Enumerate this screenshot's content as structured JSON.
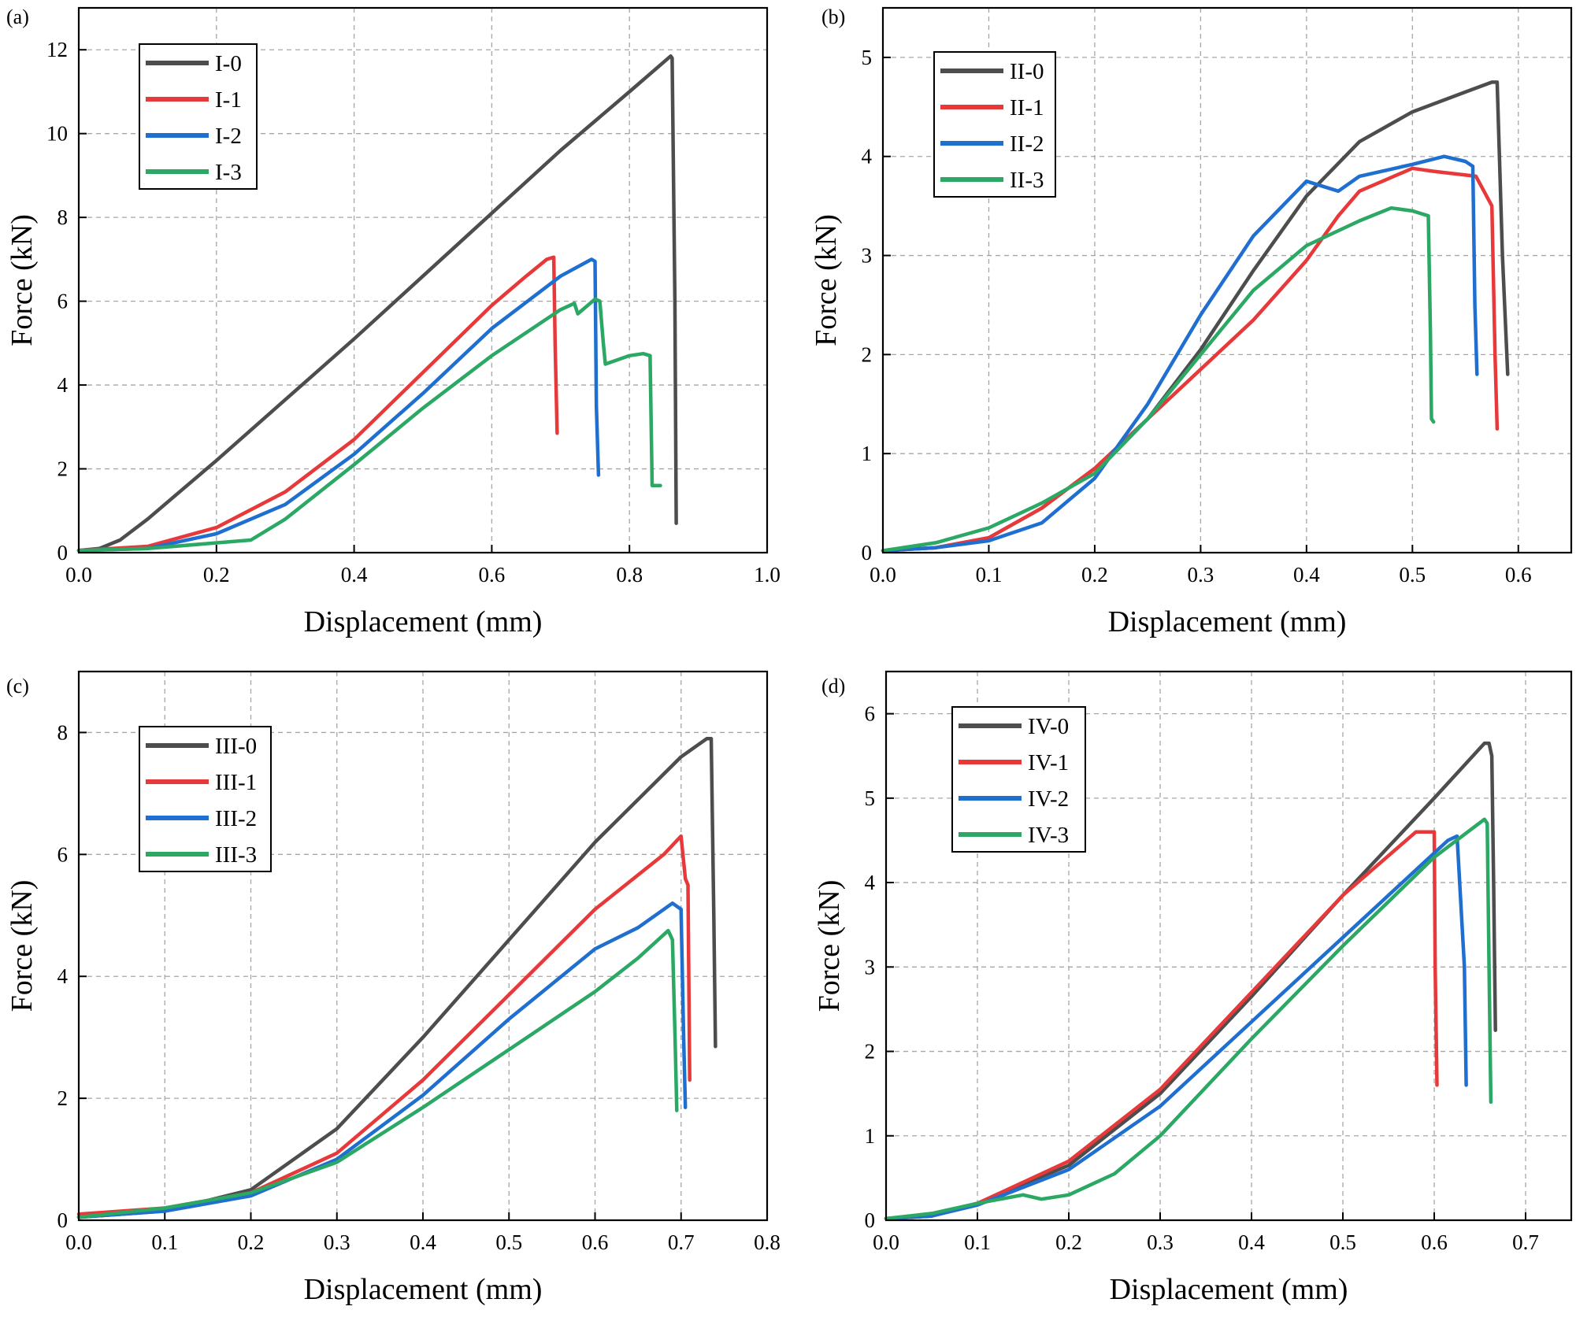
{
  "figure": {
    "colors": {
      "series_0": "#4d4d4d",
      "series_1": "#e8393a",
      "series_2": "#1f6fd1",
      "series_3": "#2aa864",
      "grid": "#a6a6a6",
      "axis": "#000000"
    }
  },
  "chart_data": [
    {
      "panel": "(a)",
      "type": "line",
      "xlabel": "Displacement (mm)",
      "ylabel": "Force (kN)",
      "xlim": [
        0,
        1.0
      ],
      "ylim": [
        0,
        13
      ],
      "xticks": [
        "0.0",
        "0.2",
        "0.4",
        "0.6",
        "0.8",
        "1.0"
      ],
      "yticks": [
        "0",
        "2",
        "4",
        "6",
        "8",
        "10",
        "12"
      ],
      "grid": true,
      "legend_position": "top-left",
      "series": [
        {
          "name": "I-0",
          "x": [
            0.0,
            0.03,
            0.06,
            0.1,
            0.2,
            0.3,
            0.4,
            0.5,
            0.6,
            0.7,
            0.8,
            0.86,
            0.862,
            0.866,
            0.868
          ],
          "y": [
            0.05,
            0.1,
            0.3,
            0.8,
            2.2,
            3.65,
            5.1,
            6.6,
            8.1,
            9.6,
            11.0,
            11.85,
            11.8,
            6.0,
            0.7
          ]
        },
        {
          "name": "I-1",
          "x": [
            0.0,
            0.1,
            0.2,
            0.3,
            0.4,
            0.5,
            0.6,
            0.65,
            0.68,
            0.69,
            0.692,
            0.695
          ],
          "y": [
            0.05,
            0.15,
            0.6,
            1.45,
            2.7,
            4.3,
            5.9,
            6.6,
            7.0,
            7.05,
            5.0,
            2.85
          ]
        },
        {
          "name": "I-2",
          "x": [
            0.0,
            0.1,
            0.2,
            0.3,
            0.4,
            0.5,
            0.6,
            0.7,
            0.745,
            0.75,
            0.752,
            0.755
          ],
          "y": [
            0.05,
            0.1,
            0.45,
            1.15,
            2.35,
            3.8,
            5.35,
            6.6,
            7.0,
            6.95,
            3.5,
            1.85
          ]
        },
        {
          "name": "I-3",
          "x": [
            0.0,
            0.1,
            0.25,
            0.3,
            0.4,
            0.5,
            0.6,
            0.7,
            0.72,
            0.725,
            0.75,
            0.757,
            0.762,
            0.765,
            0.8,
            0.82,
            0.83,
            0.833,
            0.837,
            0.845
          ],
          "y": [
            0.05,
            0.1,
            0.3,
            0.8,
            2.1,
            3.45,
            4.7,
            5.8,
            5.95,
            5.7,
            6.05,
            6.0,
            5.0,
            4.5,
            4.7,
            4.75,
            4.7,
            1.6,
            1.6,
            1.6
          ]
        }
      ]
    },
    {
      "panel": "(b)",
      "type": "line",
      "xlabel": "Displacement (mm)",
      "ylabel": "Force (kN)",
      "xlim": [
        0,
        0.65
      ],
      "ylim": [
        0,
        5.5
      ],
      "xticks": [
        "0.0",
        "0.1",
        "0.2",
        "0.3",
        "0.4",
        "0.5",
        "0.6"
      ],
      "yticks": [
        "0",
        "1",
        "2",
        "3",
        "4",
        "5"
      ],
      "grid": true,
      "legend_position": "top-left",
      "series": [
        {
          "name": "II-0",
          "x": [
            0.0,
            0.05,
            0.1,
            0.15,
            0.2,
            0.25,
            0.3,
            0.35,
            0.4,
            0.45,
            0.5,
            0.55,
            0.575,
            0.58,
            0.585,
            0.59
          ],
          "y": [
            0.02,
            0.05,
            0.15,
            0.45,
            0.85,
            1.35,
            2.05,
            2.85,
            3.6,
            4.15,
            4.45,
            4.65,
            4.75,
            4.75,
            3.0,
            1.8
          ]
        },
        {
          "name": "II-1",
          "x": [
            0.0,
            0.05,
            0.1,
            0.15,
            0.2,
            0.25,
            0.3,
            0.35,
            0.4,
            0.43,
            0.45,
            0.5,
            0.52,
            0.56,
            0.575,
            0.578,
            0.58
          ],
          "y": [
            0.02,
            0.05,
            0.15,
            0.45,
            0.85,
            1.35,
            1.85,
            2.35,
            2.95,
            3.4,
            3.65,
            3.88,
            3.85,
            3.8,
            3.5,
            2.0,
            1.25
          ]
        },
        {
          "name": "II-2",
          "x": [
            0.0,
            0.05,
            0.1,
            0.15,
            0.2,
            0.25,
            0.3,
            0.35,
            0.4,
            0.43,
            0.45,
            0.5,
            0.53,
            0.55,
            0.557,
            0.559,
            0.561
          ],
          "y": [
            0.02,
            0.05,
            0.12,
            0.3,
            0.75,
            1.5,
            2.4,
            3.2,
            3.75,
            3.65,
            3.8,
            3.92,
            4.0,
            3.95,
            3.9,
            2.5,
            1.8
          ]
        },
        {
          "name": "II-3",
          "x": [
            0.0,
            0.05,
            0.1,
            0.15,
            0.2,
            0.25,
            0.3,
            0.35,
            0.4,
            0.45,
            0.48,
            0.5,
            0.515,
            0.517,
            0.518,
            0.52
          ],
          "y": [
            0.02,
            0.1,
            0.25,
            0.5,
            0.8,
            1.35,
            2.0,
            2.65,
            3.1,
            3.35,
            3.48,
            3.45,
            3.4,
            2.2,
            1.35,
            1.32
          ]
        }
      ]
    },
    {
      "panel": "(c)",
      "type": "line",
      "xlabel": "Displacement (mm)",
      "ylabel": "Force (kN)",
      "xlim": [
        0,
        0.8
      ],
      "ylim": [
        0,
        9
      ],
      "xticks": [
        "0.0",
        "0.1",
        "0.2",
        "0.3",
        "0.4",
        "0.5",
        "0.6",
        "0.7",
        "0.8"
      ],
      "yticks": [
        "0",
        "2",
        "4",
        "6",
        "8"
      ],
      "grid": true,
      "legend_position": "top-left",
      "series": [
        {
          "name": "III-0",
          "x": [
            0.0,
            0.1,
            0.2,
            0.3,
            0.4,
            0.5,
            0.6,
            0.7,
            0.73,
            0.735,
            0.738,
            0.74
          ],
          "y": [
            0.05,
            0.15,
            0.5,
            1.5,
            3.0,
            4.6,
            6.2,
            7.6,
            7.9,
            7.9,
            5.0,
            2.85
          ]
        },
        {
          "name": "III-1",
          "x": [
            0.0,
            0.1,
            0.2,
            0.3,
            0.4,
            0.5,
            0.6,
            0.68,
            0.7,
            0.705,
            0.708,
            0.71
          ],
          "y": [
            0.1,
            0.2,
            0.45,
            1.1,
            2.3,
            3.7,
            5.1,
            6.0,
            6.3,
            5.6,
            5.5,
            2.3
          ]
        },
        {
          "name": "III-2",
          "x": [
            0.0,
            0.1,
            0.2,
            0.3,
            0.4,
            0.5,
            0.6,
            0.65,
            0.69,
            0.7,
            0.703,
            0.705
          ],
          "y": [
            0.05,
            0.15,
            0.4,
            1.0,
            2.05,
            3.3,
            4.45,
            4.8,
            5.2,
            5.1,
            3.0,
            1.85
          ]
        },
        {
          "name": "III-3",
          "x": [
            0.0,
            0.1,
            0.2,
            0.3,
            0.4,
            0.5,
            0.6,
            0.65,
            0.685,
            0.69,
            0.693,
            0.695
          ],
          "y": [
            0.05,
            0.2,
            0.45,
            0.95,
            1.85,
            2.8,
            3.75,
            4.3,
            4.75,
            4.6,
            3.0,
            1.8
          ]
        }
      ]
    },
    {
      "panel": "(d)",
      "type": "line",
      "xlabel": "Displacement (mm)",
      "ylabel": "Force (kN)",
      "xlim": [
        0,
        0.75
      ],
      "ylim": [
        0,
        6.5
      ],
      "xticks": [
        "0.0",
        "0.1",
        "0.2",
        "0.3",
        "0.4",
        "0.5",
        "0.6",
        "0.7"
      ],
      "yticks": [
        "0",
        "1",
        "2",
        "3",
        "4",
        "5",
        "6"
      ],
      "grid": true,
      "legend_position": "top-left",
      "series": [
        {
          "name": "IV-0",
          "x": [
            0.0,
            0.05,
            0.1,
            0.2,
            0.3,
            0.4,
            0.5,
            0.6,
            0.655,
            0.66,
            0.663,
            0.665,
            0.667
          ],
          "y": [
            0.02,
            0.05,
            0.2,
            0.65,
            1.5,
            2.65,
            3.85,
            5.0,
            5.65,
            5.65,
            5.5,
            4.0,
            2.25
          ]
        },
        {
          "name": "IV-1",
          "x": [
            0.0,
            0.05,
            0.1,
            0.2,
            0.3,
            0.4,
            0.5,
            0.58,
            0.595,
            0.6,
            0.601,
            0.603
          ],
          "y": [
            0.02,
            0.05,
            0.2,
            0.7,
            1.55,
            2.7,
            3.85,
            4.6,
            4.6,
            4.6,
            3.0,
            1.6
          ]
        },
        {
          "name": "IV-2",
          "x": [
            0.0,
            0.05,
            0.1,
            0.2,
            0.3,
            0.4,
            0.5,
            0.6,
            0.615,
            0.625,
            0.633,
            0.635
          ],
          "y": [
            0.02,
            0.05,
            0.18,
            0.6,
            1.35,
            2.35,
            3.35,
            4.35,
            4.5,
            4.55,
            3.0,
            1.6
          ]
        },
        {
          "name": "IV-3",
          "x": [
            0.0,
            0.05,
            0.1,
            0.15,
            0.17,
            0.2,
            0.25,
            0.3,
            0.4,
            0.5,
            0.6,
            0.655,
            0.658,
            0.66,
            0.662
          ],
          "y": [
            0.02,
            0.08,
            0.2,
            0.3,
            0.25,
            0.3,
            0.55,
            1.0,
            2.15,
            3.25,
            4.3,
            4.75,
            4.7,
            3.0,
            1.4
          ]
        }
      ]
    }
  ]
}
